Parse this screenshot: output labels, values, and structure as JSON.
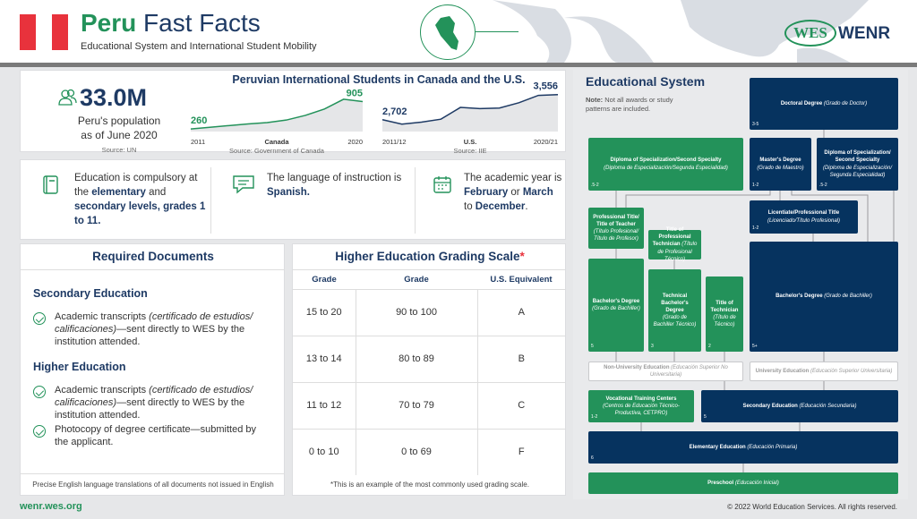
{
  "header": {
    "country": "Peru",
    "title_rest": "Fast Facts",
    "subtitle": "Educational System and International Student Mobility",
    "logo_wes": "WES",
    "logo_wenr": "WENR",
    "colors": {
      "green": "#23925a",
      "navy": "#1e3a64",
      "flag_red": "#e8323c"
    }
  },
  "stats": {
    "population": {
      "value": "33.0M",
      "label_line1": "Peru's population",
      "label_line2": "as of June 2020",
      "source": "Source: UN",
      "icon": "people-icon"
    },
    "chart_title": "Peruvian International Students in Canada and the U.S."
  },
  "chart_data": [
    {
      "type": "area",
      "name": "Canada",
      "x_start": "2011",
      "x_end": "2020",
      "x": [
        "2011",
        "2012",
        "2013",
        "2014",
        "2015",
        "2016",
        "2017",
        "2018",
        "2019",
        "2020"
      ],
      "values": [
        260,
        300,
        340,
        380,
        410,
        470,
        580,
        730,
        960,
        905
      ],
      "labels": {
        "start": "260",
        "end": "905"
      },
      "source": "Source: Government of Canada",
      "color": "#23925a"
    },
    {
      "type": "area",
      "name": "U.S.",
      "x_start": "2011/12",
      "x_end": "2020/21",
      "x": [
        "2011/12",
        "2012/13",
        "2013/14",
        "2014/15",
        "2015/16",
        "2016/17",
        "2017/18",
        "2018/19",
        "2019/20",
        "2020/21"
      ],
      "values": [
        2702,
        2550,
        2620,
        2720,
        3120,
        3080,
        3100,
        3280,
        3530,
        3556
      ],
      "labels": {
        "start": "2,702",
        "end": "3,556"
      },
      "source": "Source: IIE",
      "color": "#1e3a64"
    }
  ],
  "facts": [
    {
      "icon": "book-icon",
      "parts": [
        "Education is compulsory at the ",
        "elementary",
        " and ",
        "secondary levels, grades 1 to 11."
      ]
    },
    {
      "icon": "speech-bubble-icon",
      "parts": [
        "The language of instruction is ",
        "Spanish."
      ]
    },
    {
      "icon": "calendar-icon",
      "parts": [
        "The academic year is ",
        "February",
        " or ",
        "March",
        " to ",
        "December",
        "."
      ]
    }
  ],
  "documents": {
    "title": "Required Documents",
    "secondary_heading": "Secondary Education",
    "secondary_items": [
      {
        "a": "Academic transcripts ",
        "i": "(certificado de estudios/ calificaciones)",
        "b": "—sent directly to WES by the institution attended."
      }
    ],
    "higher_heading": "Higher Education",
    "higher_items": [
      {
        "a": "Academic transcripts ",
        "i": "(certificado de estudios/ calificaciones)",
        "b": "—sent directly to WES by the institution attended."
      },
      {
        "a": "Photocopy of degree certificate—submitted by the applicant.",
        "i": "",
        "b": ""
      }
    ],
    "footnote": "Precise English language translations of all documents not issued in English"
  },
  "grading": {
    "title": "Higher Education Grading Scale",
    "asterisk": "*",
    "headers": [
      "Grade",
      "Grade",
      "U.S. Equivalent"
    ],
    "rows": [
      [
        "15 to 20",
        "90 to 100",
        "A"
      ],
      [
        "13 to 14",
        "80 to 89",
        "B"
      ],
      [
        "11 to 12",
        "70 to 79",
        "C"
      ],
      [
        "0 to 10",
        "0 to 69",
        "F"
      ]
    ],
    "footnote": "*This is an example of the most commonly used grading scale."
  },
  "system": {
    "title": "Educational System",
    "note_bold": "Note:",
    "note": " Not all awards or study patterns are included.",
    "boxes": {
      "doctoral": {
        "name": "Doctoral Degree ",
        "local": "(Grado de Doctor)",
        "years": "3-5"
      },
      "diploma_green": {
        "name": "Diploma of Specialization/Second Specialty",
        "local": "(Diploma de Especialización/Segunda Especialidad)",
        "years": ".5-2"
      },
      "masters": {
        "name": "Master's Degree",
        "local": "(Grado de Maestro)",
        "years": "1-2"
      },
      "diploma_navy": {
        "name": "Diploma of Specialization/ Second Specialty",
        "local": "(Diploma de Especialización/ Segunda Especialidad)",
        "years": ".5-2"
      },
      "licentiate": {
        "name": "Licentiate/Professional Title",
        "local": "(Licenciado/Título Profesional)",
        "years": "1-2"
      },
      "prof_title": {
        "name": "Professional Title/ Title of Teacher",
        "local": "(Título Profesional/ Título de Profesor)",
        "years": ""
      },
      "prof_technician": {
        "name": "Title of Professional Technician ",
        "local": "(Título de Profesional Técnico)",
        "years": ""
      },
      "bachelor_green": {
        "name": "Bachelor's Degree",
        "local": "(Grado de Bachiller)",
        "years": "5"
      },
      "tech_bachelor": {
        "name": "Technical Bachelor's Degree",
        "local": "(Grado de Bachiller Técnico)",
        "years": "3"
      },
      "technician": {
        "name": "Title of Technician",
        "local": "(Título de Técnico)",
        "years": "2"
      },
      "bachelor_navy": {
        "name": "Bachelor's Degree ",
        "local": "(Grado de Bachiller)",
        "years": "5+"
      },
      "non_university": {
        "name": "Non-University Education ",
        "local": "(Educación Superior No Universitaria)",
        "years": ""
      },
      "university": {
        "name": "University Education ",
        "local": "(Educación Superior Universitaria)",
        "years": ""
      },
      "vocational": {
        "name": "Vocational Training Centers",
        "local": "(Centros de Educación Técnico-Productiva, CETPRO)",
        "years": "1-2"
      },
      "secondary": {
        "name": "Secondary Education ",
        "local": "(Educación Secundaria)",
        "years": "5"
      },
      "elementary": {
        "name": "Elementary Education ",
        "local": "(Educación Primaria)",
        "years": "6"
      },
      "preschool": {
        "name": "Preschool ",
        "local": "(Educación Inicial)",
        "years": ""
      }
    }
  },
  "footer": {
    "url": "wenr.wes.org",
    "copyright": "© 2022 World Education Services. All rights reserved."
  }
}
